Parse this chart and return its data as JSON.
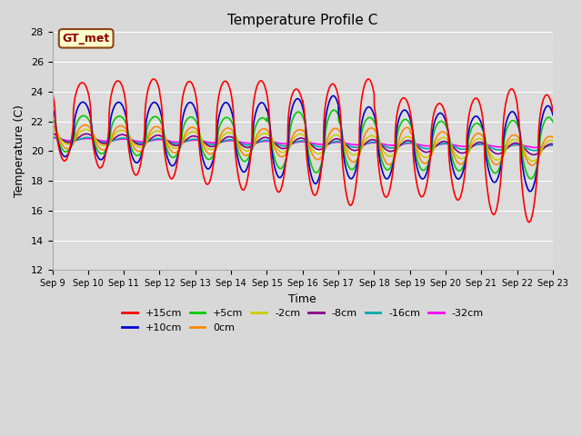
{
  "title": "Temperature Profile C",
  "xlabel": "Time",
  "ylabel": "Temperature (C)",
  "ylim": [
    12,
    28
  ],
  "xlim": [
    0,
    336
  ],
  "background_color": "#e8e8e8",
  "plot_bg_color": "#d8d8d8",
  "grid_color": "#ffffff",
  "legend_label": "GT_met",
  "series_order": [
    "+15cm",
    "+10cm",
    "+5cm",
    "0cm",
    "-2cm",
    "-8cm",
    "-16cm",
    "-32cm"
  ],
  "series": {
    "+15cm": {
      "color": "#ff0000",
      "lw": 1.2
    },
    "+10cm": {
      "color": "#0000cc",
      "lw": 1.2
    },
    "+5cm": {
      "color": "#00cc00",
      "lw": 1.2
    },
    "0cm": {
      "color": "#ff8800",
      "lw": 1.2
    },
    "-2cm": {
      "color": "#cccc00",
      "lw": 1.2
    },
    "-8cm": {
      "color": "#880088",
      "lw": 1.2
    },
    "-16cm": {
      "color": "#00aaaa",
      "lw": 1.2
    },
    "-32cm": {
      "color": "#ff00ff",
      "lw": 1.2
    }
  },
  "xtick_positions": [
    0,
    24,
    48,
    72,
    96,
    120,
    144,
    168,
    192,
    216,
    240,
    264,
    288,
    312,
    336
  ],
  "xtick_labels": [
    "Sep 9",
    "Sep 10",
    "Sep 11",
    "Sep 12",
    "Sep 13",
    "Sep 14",
    "Sep 15",
    "Sep 16",
    "Sep 17",
    "Sep 18",
    "Sep 19",
    "Sep 20",
    "Sep 21",
    "Sep 22",
    "Sep 23"
  ],
  "ytick_positions": [
    12,
    14,
    16,
    18,
    20,
    22,
    24,
    26,
    28
  ],
  "ytick_labels": [
    "12",
    "14",
    "16",
    "18",
    "20",
    "22",
    "24",
    "26",
    "28"
  ]
}
